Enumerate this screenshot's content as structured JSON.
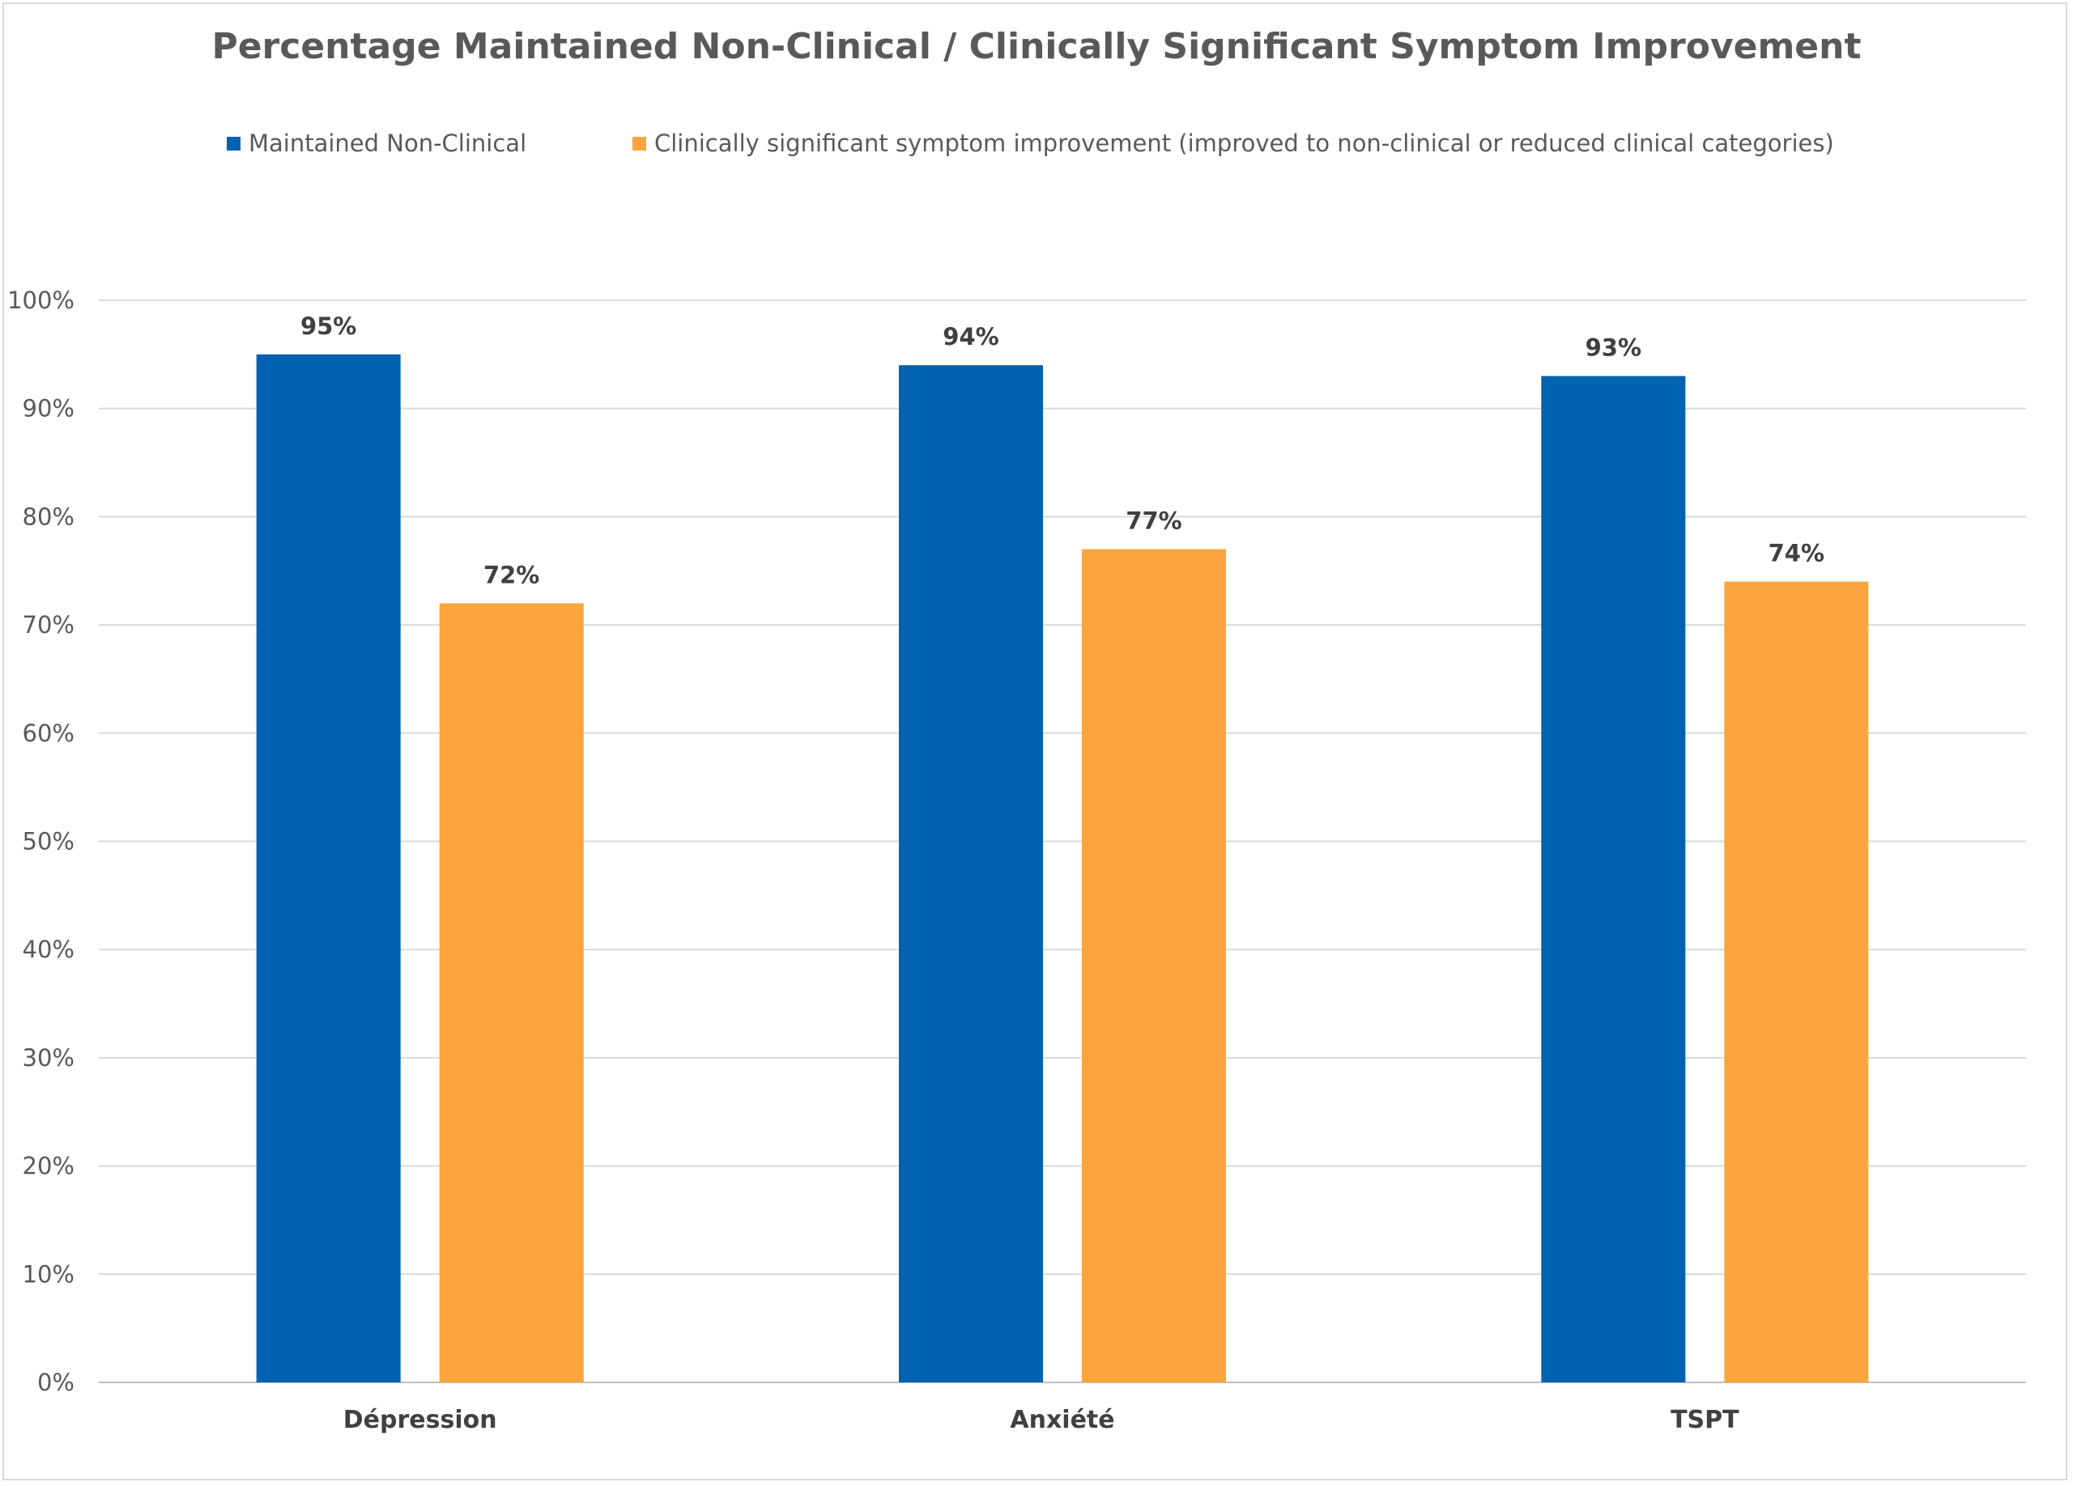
{
  "chart_data": {
    "type": "bar",
    "title": "Percentage Maintained Non-Clinical / Clinically Significant Symptom Improvement",
    "categories": [
      "Dépression",
      "Anxiété",
      "TSPT"
    ],
    "series": [
      {
        "name": "Maintained Non-Clinical",
        "color": "#0063b1",
        "values": [
          95,
          94,
          93
        ],
        "labels": [
          "95%",
          "94%",
          "93%"
        ]
      },
      {
        "name": "Clinically significant symptom improvement (improved to non-clinical or reduced clinical categories)",
        "color": "#fba53e",
        "values": [
          72,
          77,
          74
        ],
        "labels": [
          "72%",
          "77%",
          "74%"
        ]
      }
    ],
    "ylim": [
      0,
      100
    ],
    "yticks": [
      "0%",
      "10%",
      "20%",
      "30%",
      "40%",
      "50%",
      "60%",
      "70%",
      "80%",
      "90%",
      "100%"
    ],
    "grid": true,
    "legend": "top"
  }
}
